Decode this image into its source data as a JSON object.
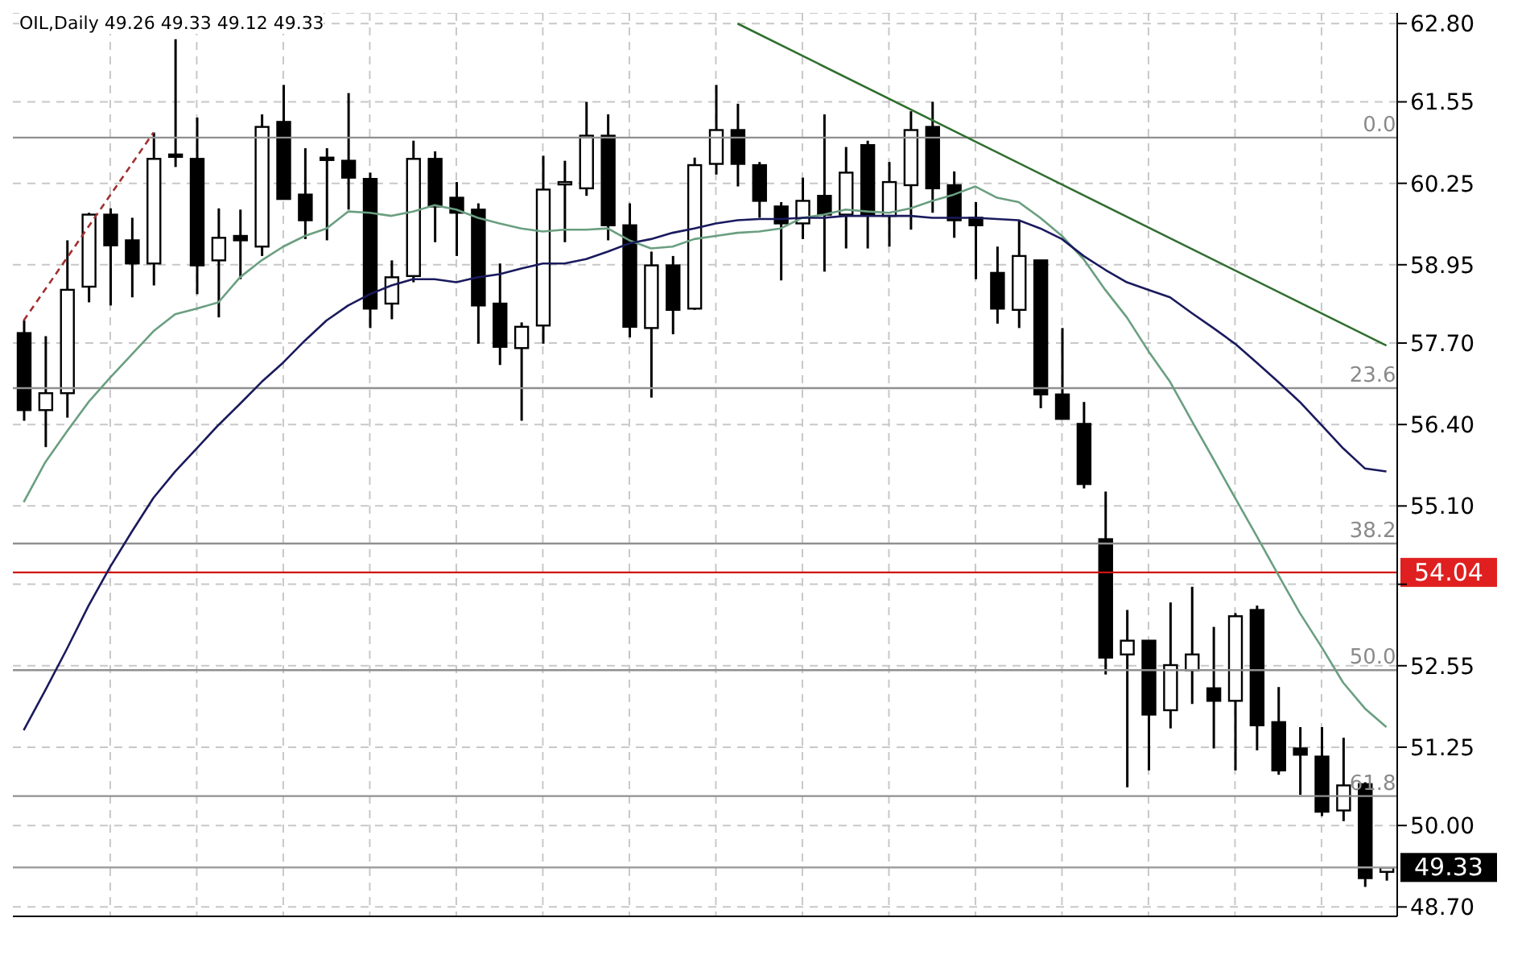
{
  "chart_data": {
    "type": "candlestick",
    "title": "OIL,Daily  49.26 49.33 49.12 49.33",
    "categories": [
      null,
      null,
      null,
      null,
      null,
      null,
      null,
      null,
      null,
      null,
      null,
      null,
      null,
      null,
      null,
      null,
      null,
      null,
      null,
      null,
      null,
      null,
      null,
      null,
      null,
      null,
      null,
      null,
      null,
      null,
      null,
      null,
      null,
      null,
      null,
      null,
      null,
      null,
      null,
      null,
      null,
      null,
      null,
      null,
      null,
      null,
      null,
      null,
      null,
      null,
      null,
      null,
      null,
      null,
      null,
      null,
      null,
      null,
      null,
      null,
      null,
      null,
      null,
      null
    ],
    "ohlc": [
      [
        57.86,
        58.06,
        56.46,
        56.63
      ],
      [
        56.63,
        57.81,
        56.04,
        56.9
      ],
      [
        56.9,
        59.34,
        56.51,
        58.55
      ],
      [
        58.6,
        59.78,
        58.35,
        59.75
      ],
      [
        59.75,
        59.85,
        58.3,
        59.26
      ],
      [
        59.34,
        59.7,
        58.43,
        58.97
      ],
      [
        58.97,
        61.06,
        58.62,
        60.64
      ],
      [
        60.71,
        62.55,
        60.51,
        60.69
      ],
      [
        60.64,
        61.3,
        58.48,
        58.94
      ],
      [
        59.02,
        59.85,
        58.11,
        59.38
      ],
      [
        59.41,
        59.83,
        58.72,
        59.34
      ],
      [
        59.24,
        61.35,
        59.09,
        61.15
      ],
      [
        61.23,
        61.82,
        60.0,
        60.0
      ],
      [
        60.07,
        60.81,
        59.36,
        59.66
      ],
      [
        60.66,
        60.81,
        59.34,
        60.64
      ],
      [
        60.61,
        61.69,
        59.83,
        60.34
      ],
      [
        60.32,
        60.42,
        57.94,
        58.25
      ],
      [
        58.33,
        59.02,
        58.08,
        58.75
      ],
      [
        58.77,
        60.93,
        58.67,
        60.64
      ],
      [
        60.64,
        60.76,
        59.31,
        59.88
      ],
      [
        60.02,
        60.27,
        59.09,
        59.78
      ],
      [
        59.83,
        59.93,
        57.69,
        58.3
      ],
      [
        58.33,
        58.97,
        57.35,
        57.64
      ],
      [
        57.62,
        58.03,
        56.46,
        57.96
      ],
      [
        57.98,
        60.69,
        57.69,
        60.15
      ],
      [
        60.24,
        60.61,
        59.31,
        60.27
      ],
      [
        60.17,
        61.55,
        60.05,
        61.01
      ],
      [
        61.01,
        61.35,
        59.34,
        59.58
      ],
      [
        59.58,
        59.93,
        57.79,
        57.96
      ],
      [
        57.94,
        59.16,
        56.83,
        58.94
      ],
      [
        58.94,
        59.09,
        57.84,
        58.23
      ],
      [
        58.25,
        60.66,
        58.23,
        60.54
      ],
      [
        60.56,
        61.82,
        60.39,
        61.1
      ],
      [
        61.1,
        61.52,
        60.2,
        60.56
      ],
      [
        60.54,
        60.59,
        59.7,
        59.97
      ],
      [
        59.88,
        59.95,
        58.7,
        59.61
      ],
      [
        59.61,
        60.34,
        59.36,
        59.97
      ],
      [
        60.05,
        61.35,
        58.84,
        59.75
      ],
      [
        59.75,
        60.83,
        59.21,
        60.42
      ],
      [
        60.86,
        60.93,
        59.21,
        59.75
      ],
      [
        59.73,
        60.59,
        59.24,
        60.27
      ],
      [
        60.22,
        61.4,
        59.51,
        61.1
      ],
      [
        61.15,
        61.55,
        59.78,
        60.17
      ],
      [
        60.22,
        60.44,
        59.38,
        59.66
      ],
      [
        59.7,
        59.95,
        58.72,
        59.58
      ],
      [
        58.82,
        59.24,
        58.01,
        58.25
      ],
      [
        58.23,
        59.66,
        57.94,
        59.09
      ],
      [
        59.02,
        59.02,
        56.66,
        56.88
      ],
      [
        56.88,
        57.94,
        56.49,
        56.49
      ],
      [
        56.41,
        56.76,
        55.38,
        55.45
      ],
      [
        54.57,
        55.33,
        52.41,
        52.68
      ],
      [
        52.73,
        53.44,
        50.61,
        52.95
      ],
      [
        52.95,
        52.95,
        50.88,
        51.77
      ],
      [
        51.84,
        53.56,
        51.55,
        52.56
      ],
      [
        52.48,
        53.81,
        51.94,
        52.73
      ],
      [
        52.19,
        53.17,
        51.23,
        51.99
      ],
      [
        51.99,
        53.39,
        50.88,
        53.34
      ],
      [
        53.44,
        53.51,
        51.2,
        51.6
      ],
      [
        51.65,
        52.21,
        50.81,
        50.88
      ],
      [
        51.23,
        51.57,
        50.49,
        51.13
      ],
      [
        51.1,
        51.57,
        50.15,
        50.22
      ],
      [
        50.24,
        51.4,
        50.07,
        50.64
      ],
      [
        50.66,
        50.69,
        49.02,
        49.16
      ],
      [
        49.26,
        49.33,
        49.12,
        49.33
      ]
    ],
    "series": [
      {
        "type": "line",
        "color": "#6a9f80",
        "values": [
          55.16,
          55.8,
          56.29,
          56.76,
          57.15,
          57.52,
          57.89,
          58.16,
          58.25,
          58.35,
          58.75,
          59.02,
          59.24,
          59.41,
          59.53,
          59.8,
          59.78,
          59.73,
          59.8,
          59.9,
          59.83,
          59.7,
          59.61,
          59.53,
          59.48,
          59.51,
          59.51,
          59.53,
          59.34,
          59.21,
          59.24,
          59.36,
          59.41,
          59.46,
          59.48,
          59.53,
          59.7,
          59.75,
          59.83,
          59.8,
          59.78,
          59.85,
          59.97,
          60.07,
          60.2,
          60.02,
          59.95,
          59.7,
          59.41,
          59.04,
          58.55,
          58.11,
          57.57,
          57.08,
          56.46,
          55.85,
          55.23,
          54.62,
          54.0,
          53.39,
          52.85,
          52.28,
          51.87,
          51.57
        ]
      },
      {
        "type": "line",
        "color": "#1a1a5e",
        "values": [
          51.52,
          52.16,
          52.82,
          53.51,
          54.13,
          54.69,
          55.23,
          55.65,
          56.02,
          56.39,
          56.73,
          57.08,
          57.39,
          57.74,
          58.06,
          58.3,
          58.48,
          58.62,
          58.72,
          58.72,
          58.67,
          58.75,
          58.8,
          58.89,
          58.97,
          58.97,
          59.04,
          59.16,
          59.29,
          59.36,
          59.46,
          59.53,
          59.61,
          59.66,
          59.68,
          59.68,
          59.7,
          59.7,
          59.73,
          59.73,
          59.73,
          59.73,
          59.7,
          59.7,
          59.7,
          59.68,
          59.66,
          59.53,
          59.36,
          59.09,
          58.87,
          58.67,
          58.55,
          58.43,
          58.18,
          57.94,
          57.69,
          57.39,
          57.08,
          56.76,
          56.39,
          56.02,
          55.7,
          55.65
        ]
      },
      {
        "type": "line",
        "color": "#2f6f2f",
        "values": [
          null,
          null,
          null,
          null,
          null,
          null,
          null,
          null,
          null,
          null,
          null,
          null,
          null,
          null,
          null,
          null,
          null,
          null,
          null,
          null,
          null,
          null,
          null,
          null,
          null,
          null,
          null,
          null,
          null,
          null,
          null,
          null,
          null,
          62.8,
          null,
          null,
          null,
          null,
          null,
          null,
          null,
          null,
          null,
          null,
          null,
          null,
          null,
          null,
          null,
          null,
          null,
          null,
          null,
          null,
          null,
          null,
          null,
          null,
          null,
          null,
          null,
          null,
          null,
          57.66
        ]
      },
      {
        "type": "line",
        "color": "#a03030",
        "line_style": "dashed",
        "values": [
          58.06,
          null,
          null,
          null,
          null,
          null,
          61.06,
          null,
          null,
          null,
          null,
          null,
          null,
          null,
          null,
          null,
          null,
          null,
          null,
          null,
          null,
          null,
          null,
          null,
          null,
          null,
          null,
          null,
          null,
          null,
          null,
          null,
          null,
          null,
          null,
          null,
          null,
          null,
          null,
          null,
          null,
          null,
          null,
          null,
          null,
          null,
          null,
          null,
          null,
          null,
          null,
          null,
          null,
          null,
          null,
          null,
          null,
          null,
          null,
          null,
          null,
          null,
          null,
          null
        ]
      }
    ],
    "ylim": [
      48.55,
      62.97
    ],
    "yticks": [
      {
        "value": 62.8,
        "label": "62.80"
      },
      {
        "value": 61.55,
        "label": "61.55"
      },
      {
        "value": 60.25,
        "label": "60.25"
      },
      {
        "value": 58.95,
        "label": "58.95"
      },
      {
        "value": 57.7,
        "label": "57.70"
      },
      {
        "value": 56.4,
        "label": "56.40"
      },
      {
        "value": 55.1,
        "label": "55.10"
      },
      {
        "value": 53.85,
        "label": null
      },
      {
        "value": 52.55,
        "label": "52.55"
      },
      {
        "value": 51.25,
        "label": "51.25"
      },
      {
        "value": 50.0,
        "label": "50.00"
      },
      {
        "value": 48.7,
        "label": "48.70"
      }
    ],
    "ref_lines": [
      {
        "axis": "y",
        "value": 60.98,
        "color": "#909090"
      },
      {
        "axis": "y",
        "value": 56.98,
        "color": "#909090"
      },
      {
        "axis": "y",
        "value": 54.5,
        "color": "#909090"
      },
      {
        "axis": "y",
        "value": 52.48,
        "color": "#909090"
      },
      {
        "axis": "y",
        "value": 50.47,
        "color": "#909090"
      },
      {
        "axis": "y",
        "value": 54.04,
        "label": "54.04",
        "color": "#d01010"
      },
      {
        "axis": "y",
        "value": 49.33,
        "label": "49.33",
        "color": "#a0a0a0"
      }
    ],
    "annotations": [
      {
        "text": "0.0",
        "y": 60.98
      },
      {
        "text": "23.6",
        "y": 56.98
      },
      {
        "text": "38.2",
        "y": 54.5
      },
      {
        "text": "50.0",
        "y": 52.48
      },
      {
        "text": "61.8",
        "y": 50.47
      }
    ],
    "grid": true,
    "tick_labels": "y"
  }
}
